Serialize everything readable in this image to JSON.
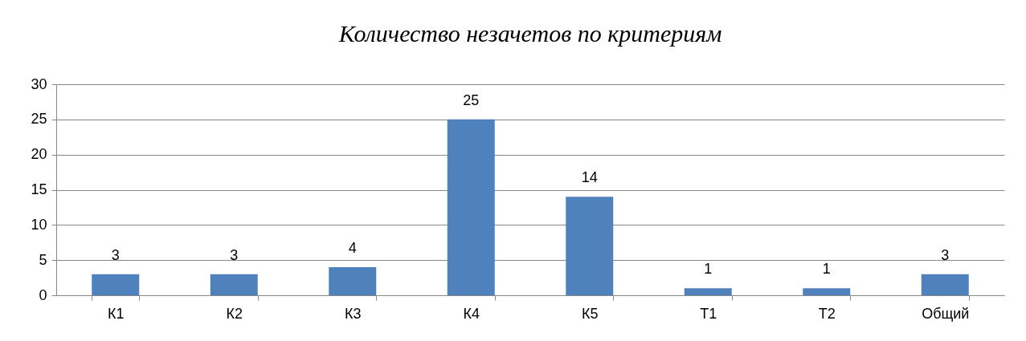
{
  "chart_data": {
    "type": "bar",
    "title": "Количество незачетов по критериям",
    "categories": [
      "К1",
      "К2",
      "К3",
      "К4",
      "К5",
      "Т1",
      "Т2",
      "Общий"
    ],
    "values": [
      3,
      3,
      4,
      25,
      14,
      1,
      1,
      3
    ],
    "color": "#4f81bd",
    "ylim": [
      0,
      30
    ],
    "yticks": [
      0,
      5,
      10,
      15,
      20,
      25,
      30
    ],
    "grid": "y",
    "data_labels": true
  }
}
